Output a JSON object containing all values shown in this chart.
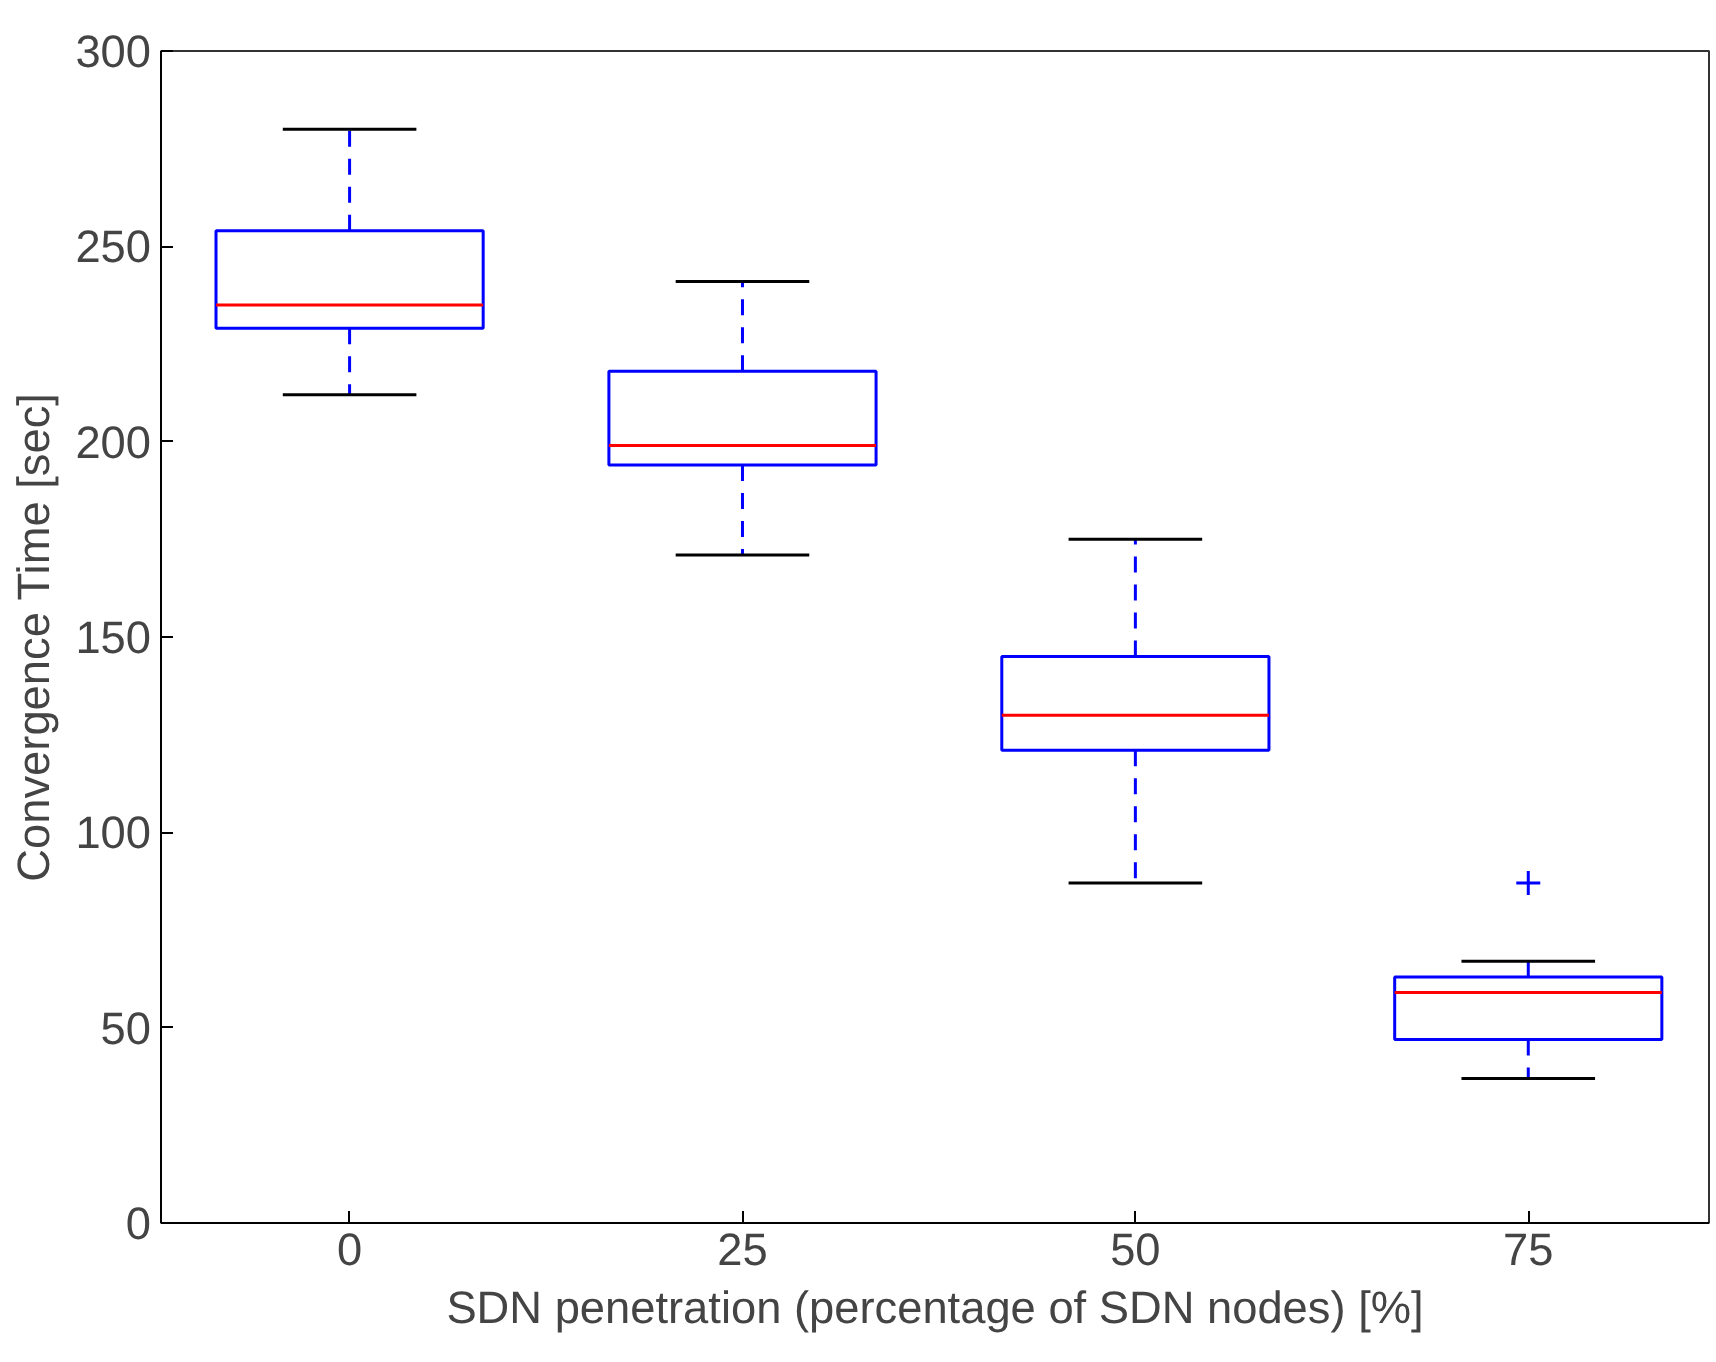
{
  "chart_data": {
    "type": "box",
    "xlabel": "SDN penetration (percentage of SDN nodes) [%]",
    "ylabel": "Convergence Time [sec]",
    "categories": [
      "0",
      "25",
      "50",
      "75"
    ],
    "boxes": [
      {
        "low": 212,
        "q1": 229,
        "median": 235,
        "q3": 254,
        "high": 280
      },
      {
        "low": 171,
        "q1": 194,
        "median": 199,
        "q3": 218,
        "high": 241
      },
      {
        "low": 87,
        "q1": 121,
        "median": 130,
        "q3": 145,
        "high": 175
      },
      {
        "low": 37,
        "q1": 47,
        "median": 59,
        "q3": 63,
        "high": 67,
        "outliers": [
          87
        ]
      }
    ],
    "color": "#0000ff",
    "line_style": "dashed",
    "ylim": [
      0,
      300
    ],
    "yticks": [
      0,
      50,
      100,
      150,
      200,
      250,
      300
    ],
    "grid": false,
    "marker": "cross"
  }
}
